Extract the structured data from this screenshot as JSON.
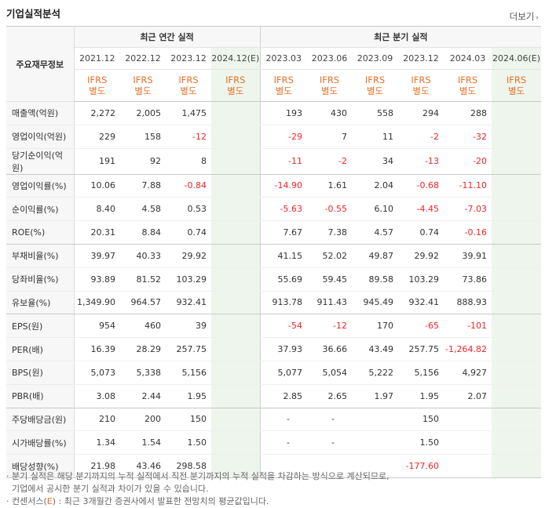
{
  "section_title": "기업실적분석",
  "more_link": "더보기",
  "row_header_label": "주요재무정보",
  "groups": {
    "annual": "최근 연간 실적",
    "quarterly": "최근 분기 실적"
  },
  "periods": [
    {
      "label": "2021.12",
      "est": false
    },
    {
      "label": "2022.12",
      "est": false
    },
    {
      "label": "2023.12",
      "est": false
    },
    {
      "label": "2024.12(E)",
      "est": true
    },
    {
      "label": "2023.03",
      "est": false
    },
    {
      "label": "2023.06",
      "est": false
    },
    {
      "label": "2023.09",
      "est": false
    },
    {
      "label": "2023.12",
      "est": false
    },
    {
      "label": "2024.03",
      "est": false
    },
    {
      "label": "2024.06(E)",
      "est": true
    }
  ],
  "ifrs_line1": "IFRS",
  "ifrs_line2": "별도",
  "rows": [
    {
      "label": "매출액(억원)",
      "values": [
        "2,272",
        "2,005",
        "1,475",
        "",
        "193",
        "430",
        "558",
        "294",
        "288",
        ""
      ]
    },
    {
      "label": "영업이익(억원)",
      "values": [
        "229",
        "158",
        "-12",
        "",
        "-29",
        "7",
        "11",
        "-2",
        "-32",
        ""
      ]
    },
    {
      "label": "당기순이익(억원)",
      "values": [
        "191",
        "92",
        "8",
        "",
        "-11",
        "-2",
        "34",
        "-13",
        "-20",
        ""
      ]
    },
    {
      "label": "영업이익률(%)",
      "values": [
        "10.06",
        "7.88",
        "-0.84",
        "",
        "-14.90",
        "1.61",
        "2.04",
        "-0.68",
        "-11.10",
        ""
      ]
    },
    {
      "label": "순이익률(%)",
      "values": [
        "8.40",
        "4.58",
        "0.53",
        "",
        "-5.63",
        "-0.55",
        "6.10",
        "-4.45",
        "-7.03",
        ""
      ]
    },
    {
      "label": "ROE(%)",
      "values": [
        "20.31",
        "8.84",
        "0.74",
        "",
        "7.67",
        "7.38",
        "4.57",
        "0.74",
        "-0.16",
        ""
      ]
    },
    {
      "label": "부채비율(%)",
      "values": [
        "39.97",
        "40.33",
        "29.92",
        "",
        "41.15",
        "52.02",
        "49.87",
        "29.92",
        "39.91",
        ""
      ]
    },
    {
      "label": "당좌비율(%)",
      "values": [
        "93.89",
        "81.52",
        "103.29",
        "",
        "55.69",
        "59.45",
        "89.58",
        "103.29",
        "73.86",
        ""
      ]
    },
    {
      "label": "유보율(%)",
      "values": [
        "1,349.90",
        "964.57",
        "932.41",
        "",
        "913.78",
        "911.43",
        "945.49",
        "932.41",
        "888.93",
        ""
      ]
    },
    {
      "label": "EPS(원)",
      "values": [
        "954",
        "460",
        "39",
        "",
        "-54",
        "-12",
        "170",
        "-65",
        "-101",
        ""
      ]
    },
    {
      "label": "PER(배)",
      "values": [
        "16.39",
        "28.29",
        "257.75",
        "",
        "37.93",
        "36.66",
        "43.49",
        "257.75",
        "-1,264.82",
        ""
      ]
    },
    {
      "label": "BPS(원)",
      "values": [
        "5,073",
        "5,338",
        "5,156",
        "",
        "5,077",
        "5,054",
        "5,222",
        "5,156",
        "4,927",
        ""
      ]
    },
    {
      "label": "PBR(배)",
      "values": [
        "3.08",
        "2.44",
        "1.95",
        "",
        "2.85",
        "2.65",
        "1.97",
        "1.95",
        "2.07",
        ""
      ]
    },
    {
      "label": "주당배당금(원)",
      "values": [
        "210",
        "200",
        "150",
        "",
        "-",
        "-",
        "",
        "150",
        "",
        ""
      ]
    },
    {
      "label": "시가배당률(%)",
      "values": [
        "1.34",
        "1.54",
        "1.50",
        "",
        "-",
        "-",
        "",
        "1.50",
        "",
        ""
      ]
    },
    {
      "label": "배당성향(%)",
      "values": [
        "21.98",
        "43.46",
        "298.58",
        "",
        "",
        "",
        "",
        "-177.60",
        "",
        ""
      ]
    }
  ],
  "notes": {
    "line1": "분기 실적은 해당 분기까지의 누적 실적에서 직전 분기까지의 누적 실적을 차감하는 방식으로 계산되므로,",
    "line2": "기업에서 공시한 분기 실적과 차이가 있을 수 있습니다.",
    "line3_prefix": "컨센서스(",
    "line3_e": "E",
    "line3_suffix": ") : 최근 3개월간 증권사에서 발표한 전망치의 평균값입니다."
  },
  "colors": {
    "negative": "#e9262a",
    "ifrs": "#e8702a",
    "estimate_bg": "#eef5ec",
    "header_bg": "#f7f7f7"
  }
}
